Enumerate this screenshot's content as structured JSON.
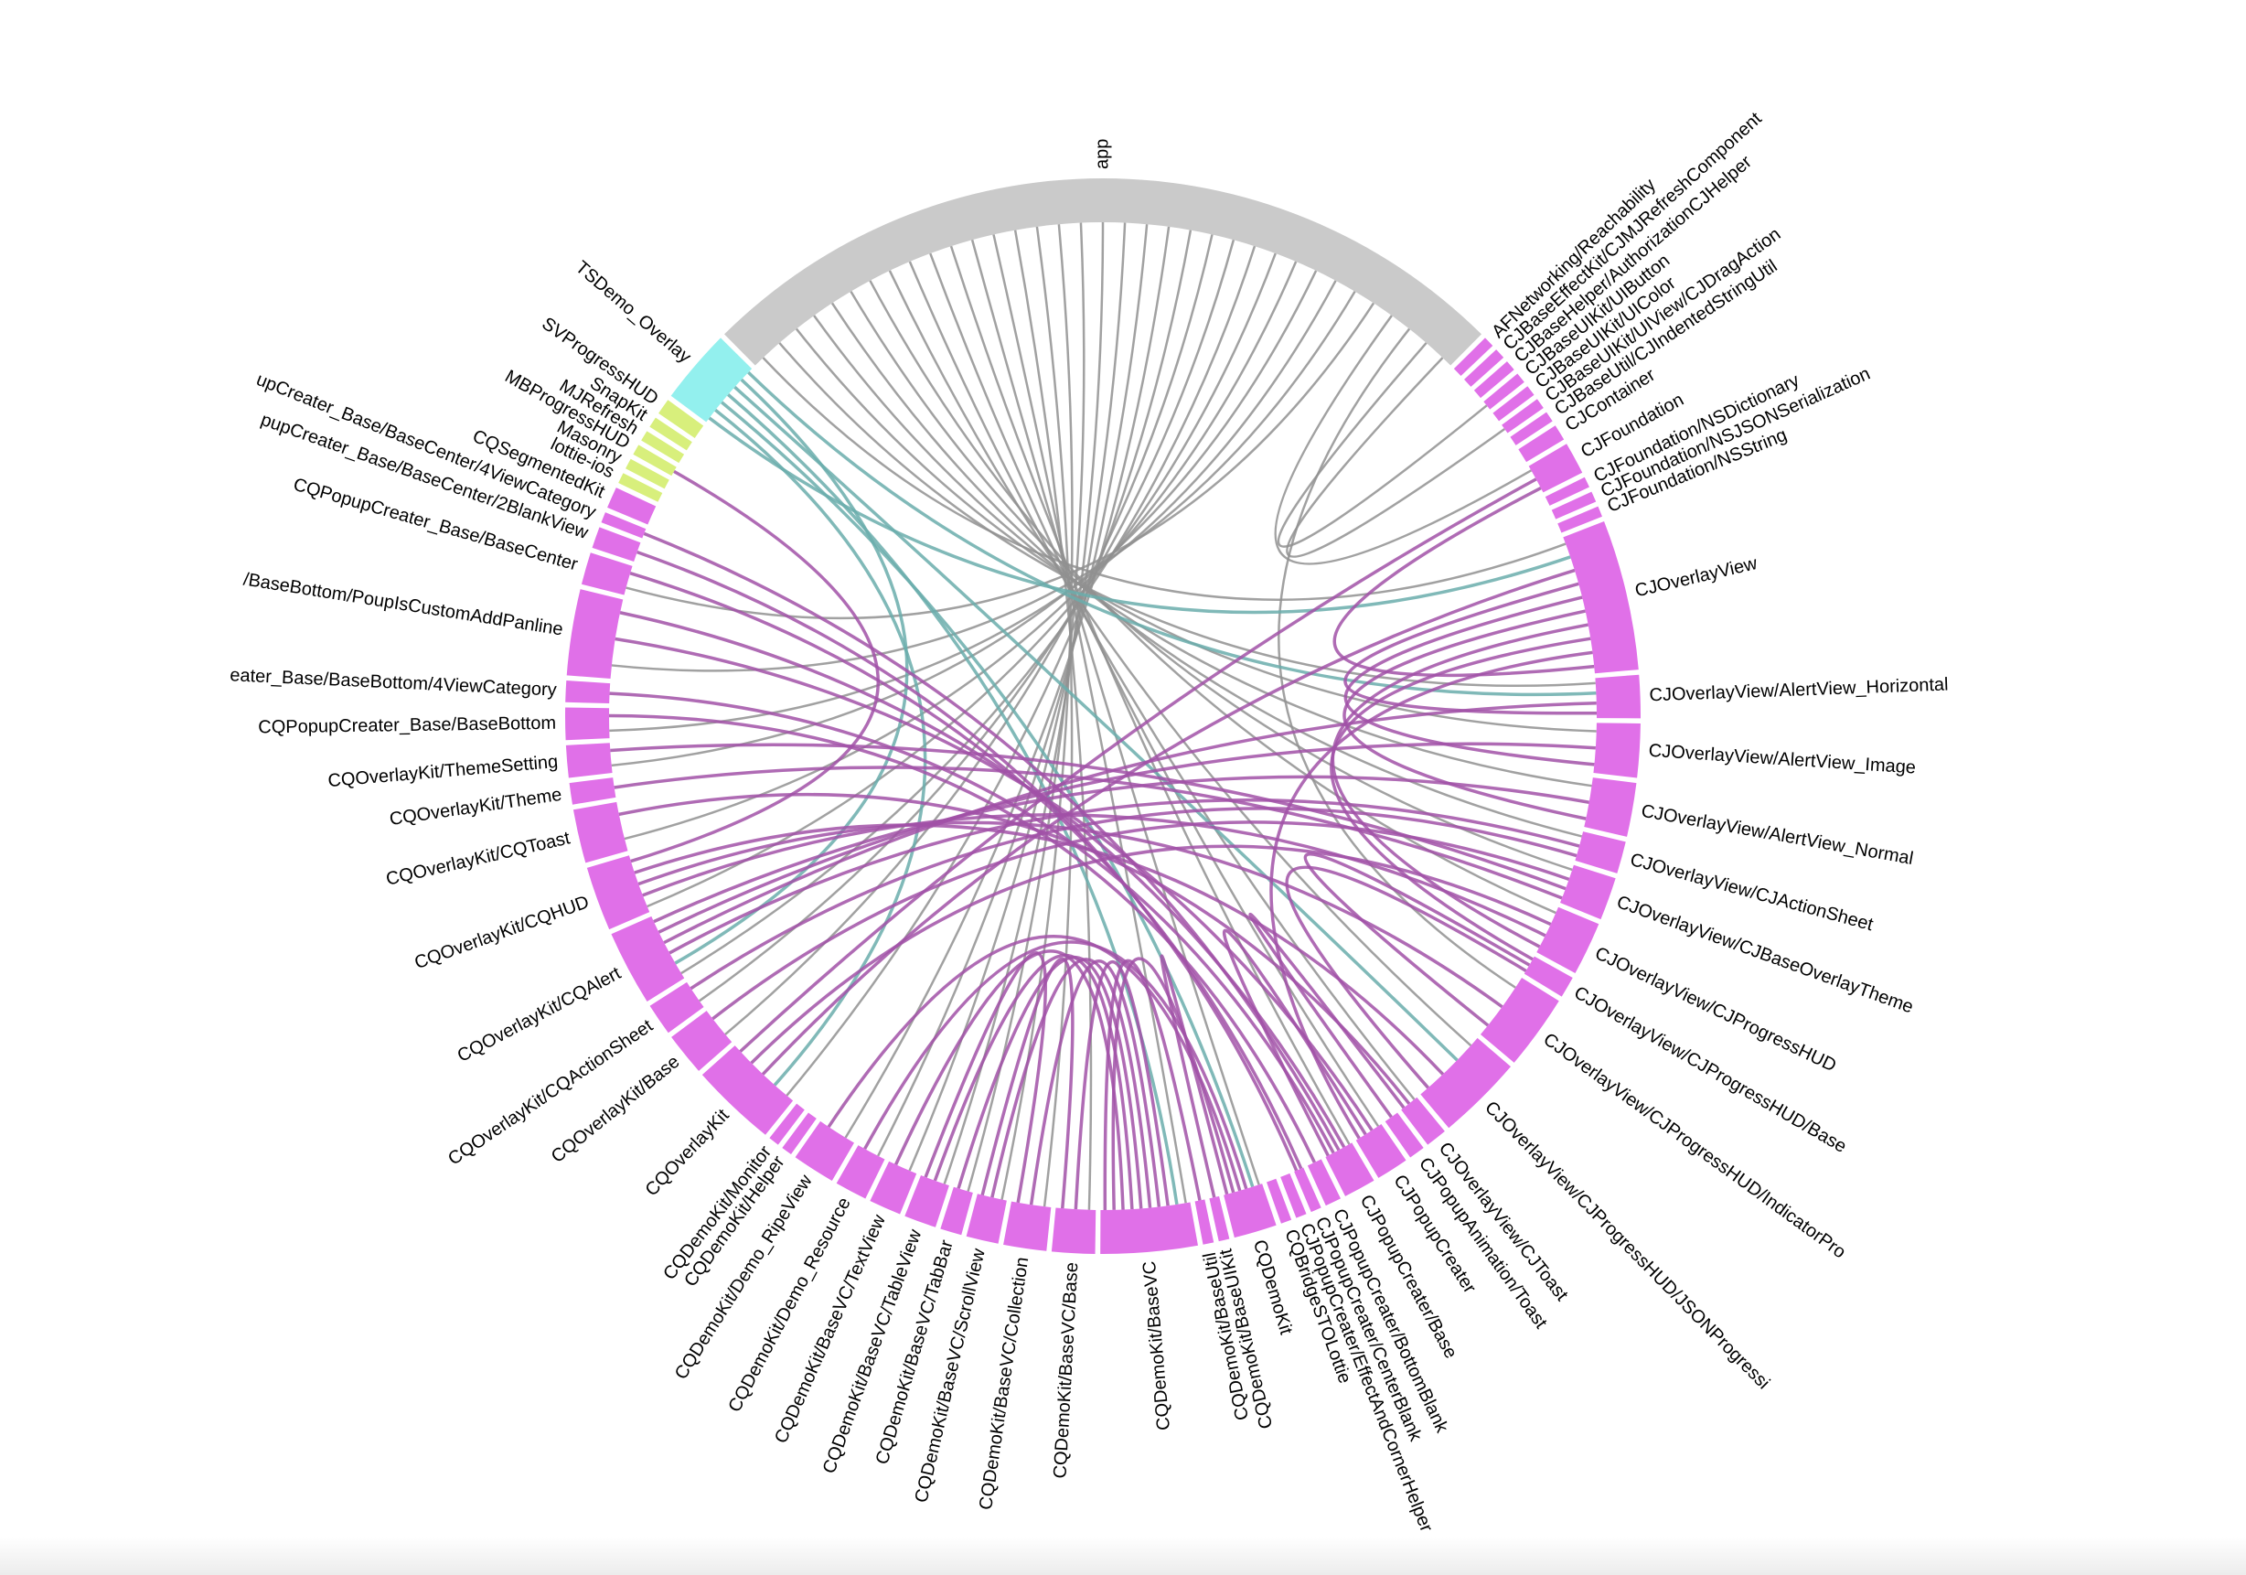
{
  "nodes": [
    {
      "label": "AFNetworking/Reachability",
      "size": 1,
      "color": "#e070e8"
    },
    {
      "label": "CJBaseEffectKit/CJMJRefreshComponent",
      "size": 1,
      "color": "#e070e8"
    },
    {
      "label": "CJBaseHelper/AuthorizationCJHelper",
      "size": 1,
      "color": "#e070e8"
    },
    {
      "label": "CJBaseUIKit/UIButton",
      "size": 1,
      "color": "#e070e8"
    },
    {
      "label": "CJBaseUIKit/UIColor",
      "size": 1,
      "color": "#e070e8"
    },
    {
      "label": "CJBaseUIKit/UIView/CJDragAction",
      "size": 1,
      "color": "#e070e8"
    },
    {
      "label": "CJBaseUtil/CJIndentedStringUtil",
      "size": 1,
      "color": "#e070e8"
    },
    {
      "label": "CJContainer",
      "size": 1.5,
      "color": "#e070e8"
    },
    {
      "label": "CJFoundation",
      "size": 3,
      "color": "#e070e8"
    },
    {
      "label": "CJFoundation/NSDictionary",
      "size": 1,
      "color": "#e070e8"
    },
    {
      "label": "CJFoundation/NSJSONSerialization",
      "size": 1,
      "color": "#e070e8"
    },
    {
      "label": "CJFoundation/NSString",
      "size": 1,
      "color": "#e070e8"
    },
    {
      "label": "CJOverlayView",
      "size": 14,
      "color": "#e070e8"
    },
    {
      "label": "CJOverlayView/AlertView_Horizontal",
      "size": 4,
      "color": "#e070e8"
    },
    {
      "label": "CJOverlayView/AlertView_Image",
      "size": 5,
      "color": "#e070e8"
    },
    {
      "label": "CJOverlayView/AlertView_Normal",
      "size": 5,
      "color": "#e070e8"
    },
    {
      "label": "CJOverlayView/CJActionSheet",
      "size": 3,
      "color": "#e070e8"
    },
    {
      "label": "CJOverlayView/CJBaseOverlayTheme",
      "size": 4,
      "color": "#e070e8"
    },
    {
      "label": "CJOverlayView/CJProgressHUD",
      "size": 5,
      "color": "#e070e8"
    },
    {
      "label": "CJOverlayView/CJProgressHUD/Base",
      "size": 2,
      "color": "#e070e8"
    },
    {
      "label": "CJOverlayView/CJProgressHUD/IndicatorPro",
      "size": 7,
      "color": "#e070e8"
    },
    {
      "label": "CJOverlayView/CJProgressHUD/JSONProgressi",
      "size": 8,
      "color": "#e070e8"
    },
    {
      "label": "CJOverlayView/CJToast",
      "size": 2,
      "color": "#e070e8"
    },
    {
      "label": "CJPopupAnimation/Toast",
      "size": 1.5,
      "color": "#e070e8"
    },
    {
      "label": "CJPopupCreater",
      "size": 3,
      "color": "#e070e8"
    },
    {
      "label": "CJPopupCreater/Base",
      "size": 3,
      "color": "#e070e8"
    },
    {
      "label": "CJPopupCreater/BottomBlank",
      "size": 1.5,
      "color": "#e070e8"
    },
    {
      "label": "CJPopupCreater/CenterBlank",
      "size": 1,
      "color": "#e070e8"
    },
    {
      "label": "CJPopupCreater/EffectAndCornerHelper",
      "size": 1,
      "color": "#e070e8"
    },
    {
      "label": "CQBridgeSTOLottie",
      "size": 1,
      "color": "#e070e8"
    },
    {
      "label": "CQDemoKit",
      "size": 4,
      "color": "#e070e8"
    },
    {
      "label": "CQDemoKit/BaseUIKit",
      "size": 1,
      "color": "#e070e8"
    },
    {
      "label": "CQDemoKit/BaseUtil",
      "size": 1,
      "color": "#e070e8"
    },
    {
      "label": "CQDemoKit/BaseVC",
      "size": 9,
      "color": "#e070e8"
    },
    {
      "label": "CQDemoKit/BaseVC/Base",
      "size": 4,
      "color": "#e070e8"
    },
    {
      "label": "CQDemoKit/BaseVC/Collection",
      "size": 4,
      "color": "#e070e8"
    },
    {
      "label": "CQDemoKit/BaseVC/ScrollView",
      "size": 3,
      "color": "#e070e8"
    },
    {
      "label": "CQDemoKit/BaseVC/TabBar",
      "size": 2,
      "color": "#e070e8"
    },
    {
      "label": "CQDemoKit/BaseVC/TableView",
      "size": 3,
      "color": "#e070e8"
    },
    {
      "label": "CQDemoKit/BaseVC/TextView",
      "size": 3,
      "color": "#e070e8"
    },
    {
      "label": "CQDemoKit/Demo_Resource",
      "size": 3,
      "color": "#e070e8"
    },
    {
      "label": "CQDemoKit/Demo_RipeView",
      "size": 4,
      "color": "#e070e8"
    },
    {
      "label": "CQDemoKit/Helper",
      "size": 1,
      "color": "#e070e8"
    },
    {
      "label": "CQDemoKit/Monitor",
      "size": 1,
      "color": "#e070e8"
    },
    {
      "label": "CQOverlayKit",
      "size": 8,
      "color": "#e070e8"
    },
    {
      "label": "CQOverlayKit/Base",
      "size": 4,
      "color": "#e070e8"
    },
    {
      "label": "CQOverlayKit/CQActionSheet",
      "size": 3,
      "color": "#e070e8"
    },
    {
      "label": "CQOverlayKit/CQAlert",
      "size": 7,
      "color": "#e070e8"
    },
    {
      "label": "CQOverlayKit/CQHUD",
      "size": 6,
      "color": "#e070e8"
    },
    {
      "label": "CQOverlayKit/CQToast",
      "size": 5,
      "color": "#e070e8"
    },
    {
      "label": "CQOverlayKit/Theme",
      "size": 2,
      "color": "#e070e8"
    },
    {
      "label": "CQOverlayKit/ThemeSetting",
      "size": 3,
      "color": "#e070e8"
    },
    {
      "label": "CQPopupCreater_Base/BaseBottom",
      "size": 3,
      "color": "#e070e8"
    },
    {
      "label": "eater_Base/BaseBottom/4ViewCategory",
      "size": 2,
      "color": "#e070e8"
    },
    {
      "label": "/BaseBottom/PoupIsCustomAddPanline",
      "size": 8,
      "color": "#e070e8"
    },
    {
      "label": "CQPopupCreater_Base/BaseCenter",
      "size": 3,
      "color": "#e070e8"
    },
    {
      "label": "pupCreater_Base/BaseCenter/2BlankView",
      "size": 2,
      "color": "#e070e8"
    },
    {
      "label": "upCreater_Base/BaseCenter/4ViewCategory",
      "size": 1,
      "color": "#e070e8"
    },
    {
      "label": "CQSegmentedKit",
      "size": 2,
      "color": "#e070e8"
    },
    {
      "label": "lottie-ios",
      "size": 1,
      "color": "#d8ef7c"
    },
    {
      "label": "Masonry",
      "size": 1,
      "color": "#d8ef7c"
    },
    {
      "label": "MBProgressHUD",
      "size": 1,
      "color": "#d8ef7c"
    },
    {
      "label": "MJRefresh",
      "size": 1,
      "color": "#d8ef7c"
    },
    {
      "label": "SnapKit",
      "size": 1,
      "color": "#d8ef7c"
    },
    {
      "label": "SVProgressHUD",
      "size": 1.5,
      "color": "#d8ef7c"
    },
    {
      "label": "TSDemo_Overlay",
      "size": 7,
      "color": "#93f0ee"
    },
    {
      "label": "app",
      "size": 77,
      "color": "#cacaca"
    }
  ],
  "links": [
    [
      66,
      12
    ],
    [
      66,
      13
    ],
    [
      66,
      14
    ],
    [
      66,
      15
    ],
    [
      66,
      16
    ],
    [
      66,
      17
    ],
    [
      66,
      18
    ],
    [
      66,
      21
    ],
    [
      66,
      22
    ],
    [
      66,
      24
    ],
    [
      66,
      25
    ],
    [
      66,
      30
    ],
    [
      66,
      33
    ],
    [
      66,
      34
    ],
    [
      66,
      35
    ],
    [
      66,
      36
    ],
    [
      66,
      37
    ],
    [
      66,
      38
    ],
    [
      66,
      39
    ],
    [
      66,
      40
    ],
    [
      66,
      41
    ],
    [
      66,
      44
    ],
    [
      66,
      45
    ],
    [
      66,
      46
    ],
    [
      66,
      47
    ],
    [
      66,
      48
    ],
    [
      66,
      49
    ],
    [
      66,
      51
    ],
    [
      66,
      52
    ],
    [
      66,
      54
    ],
    [
      66,
      55
    ],
    [
      66,
      8
    ],
    [
      66,
      20
    ],
    [
      66,
      3
    ],
    [
      66,
      5
    ],
    [
      65,
      12
    ],
    [
      65,
      44
    ],
    [
      65,
      30
    ],
    [
      65,
      33
    ],
    [
      65,
      21
    ],
    [
      65,
      47
    ],
    [
      65,
      13
    ],
    [
      44,
      12
    ],
    [
      44,
      18
    ],
    [
      47,
      16
    ],
    [
      47,
      13
    ],
    [
      47,
      14
    ],
    [
      47,
      15
    ],
    [
      48,
      18
    ],
    [
      48,
      20
    ],
    [
      48,
      21
    ],
    [
      49,
      22
    ],
    [
      46,
      16
    ],
    [
      45,
      17
    ],
    [
      51,
      17
    ],
    [
      50,
      17
    ],
    [
      54,
      24
    ],
    [
      54,
      25
    ],
    [
      52,
      26
    ],
    [
      55,
      27
    ],
    [
      56,
      27
    ],
    [
      57,
      25
    ],
    [
      53,
      25
    ],
    [
      33,
      34
    ],
    [
      33,
      35
    ],
    [
      33,
      36
    ],
    [
      33,
      37
    ],
    [
      33,
      38
    ],
    [
      33,
      39
    ],
    [
      30,
      40
    ],
    [
      30,
      41
    ],
    [
      30,
      33
    ],
    [
      12,
      13
    ],
    [
      12,
      14
    ],
    [
      12,
      15
    ],
    [
      12,
      18
    ],
    [
      12,
      19
    ],
    [
      20,
      19
    ],
    [
      21,
      19
    ],
    [
      24,
      25
    ],
    [
      24,
      12
    ],
    [
      34,
      36
    ],
    [
      35,
      38
    ],
    [
      22,
      23
    ],
    [
      48,
      61
    ],
    [
      44,
      8
    ],
    [
      12,
      8
    ],
    [
      33,
      32
    ],
    [
      30,
      31
    ]
  ]
}
